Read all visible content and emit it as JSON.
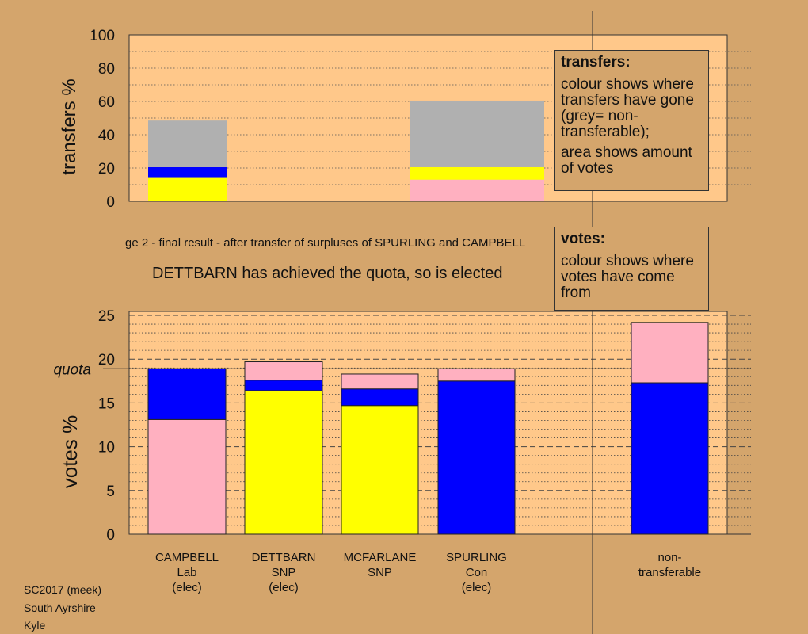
{
  "stage_text": "ge 2 - final result - after transfer of surpluses of SPURLING and CAMPBELL",
  "status_text": "DETTBARN has achieved the quota, so is elected",
  "legend_transfers": {
    "title": "transfers:",
    "line1": "colour shows where transfers have gone (grey= non-transferable);",
    "line2": "area shows amount of votes"
  },
  "legend_votes": {
    "title": "votes:",
    "line1": "colour shows where votes have come from"
  },
  "footer": {
    "l1": "SC2017 (meek)",
    "l2": "South Ayrshire",
    "l3": "Kyle"
  },
  "colors": {
    "Lab": "#ffb0c0",
    "SNP": "#ffff00",
    "Con": "#0000ff",
    "nontransferable": "#b0b0b0",
    "panel": "#ffc88a",
    "background": "#d4a56c"
  },
  "chart_data": [
    {
      "type": "bar",
      "stacked": true,
      "ylabel": "transfers %",
      "ylim": [
        0,
        100
      ],
      "yticks": [
        0,
        20,
        40,
        60,
        80,
        100
      ],
      "bars": [
        {
          "segments": [
            {
              "party": "SNP",
              "value": 14.5
            },
            {
              "party": "Con",
              "value": 6
            },
            {
              "party": "nontransferable",
              "value": 28
            }
          ]
        },
        {
          "segments": [
            {
              "party": "Lab",
              "value": 13
            },
            {
              "party": "SNP",
              "value": 7.5
            },
            {
              "party": "nontransferable",
              "value": 40
            }
          ]
        }
      ]
    },
    {
      "type": "bar",
      "stacked": true,
      "ylabel": "votes %",
      "ylim": [
        0,
        25
      ],
      "yticks": [
        0,
        5,
        10,
        15,
        20,
        25
      ],
      "quota": 18.9,
      "quota_label": "quota",
      "categories": [
        {
          "l1": "CAMPBELL",
          "l2": "Lab",
          "l3": "(elec)"
        },
        {
          "l1": "DETTBARN",
          "l2": "SNP",
          "l3": "(elec)"
        },
        {
          "l1": "MCFARLANE",
          "l2": "SNP",
          "l3": ""
        },
        {
          "l1": "SPURLING",
          "l2": "Con",
          "l3": "(elec)"
        },
        {
          "l1": "non-",
          "l2": "transferable",
          "l3": ""
        }
      ],
      "bars": [
        {
          "segments": [
            {
              "party": "Lab",
              "value": 13.1
            },
            {
              "party": "Con",
              "value": 5.8
            }
          ]
        },
        {
          "segments": [
            {
              "party": "SNP",
              "value": 16.4
            },
            {
              "party": "Con",
              "value": 1.2
            },
            {
              "party": "Lab",
              "value": 2.1
            }
          ]
        },
        {
          "segments": [
            {
              "party": "SNP",
              "value": 14.7
            },
            {
              "party": "Con",
              "value": 1.9
            },
            {
              "party": "Lab",
              "value": 1.7
            }
          ]
        },
        {
          "segments": [
            {
              "party": "Con",
              "value": 17.5
            },
            {
              "party": "Lab",
              "value": 1.4
            }
          ]
        },
        {
          "segments": [
            {
              "party": "Con",
              "value": 17.3
            },
            {
              "party": "Lab",
              "value": 6.9
            }
          ]
        }
      ]
    }
  ]
}
